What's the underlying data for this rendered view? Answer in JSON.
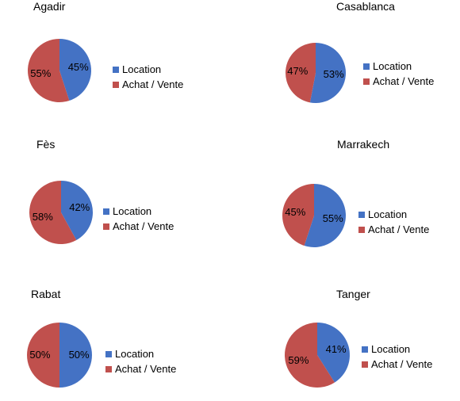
{
  "colors": {
    "Location": "#4472C4",
    "Achat / Vente": "#C0504D"
  },
  "chart_data": [
    {
      "type": "pie",
      "title": "Agadir",
      "slices": [
        {
          "label": "Location",
          "value": 45,
          "text": "45%"
        },
        {
          "label": "Achat / Vente",
          "value": 55,
          "text": "55%"
        }
      ],
      "legend": [
        "Location",
        "Achat / Vente"
      ]
    },
    {
      "type": "pie",
      "title": "Casablanca",
      "slices": [
        {
          "label": "Location",
          "value": 53,
          "text": "53%"
        },
        {
          "label": "Achat / Vente",
          "value": 47,
          "text": "47%"
        }
      ],
      "legend": [
        "Location",
        "Achat / Vente"
      ]
    },
    {
      "type": "pie",
      "title": "Fès",
      "slices": [
        {
          "label": "Location",
          "value": 42,
          "text": "42%"
        },
        {
          "label": "Achat / Vente",
          "value": 58,
          "text": "58%"
        }
      ],
      "legend": [
        "Location",
        "Achat / Vente"
      ]
    },
    {
      "type": "pie",
      "title": "Marrakech",
      "slices": [
        {
          "label": "Location",
          "value": 55,
          "text": "55%"
        },
        {
          "label": "Achat / Vente",
          "value": 45,
          "text": "45%"
        }
      ],
      "legend": [
        "Location",
        "Achat / Vente"
      ]
    },
    {
      "type": "pie",
      "title": "Rabat",
      "slices": [
        {
          "label": "Location",
          "value": 50,
          "text": "50%"
        },
        {
          "label": "Achat / Vente",
          "value": 50,
          "text": "50%"
        }
      ],
      "legend": [
        "Location",
        "Achat / Vente"
      ]
    },
    {
      "type": "pie",
      "title": "Tanger",
      "slices": [
        {
          "label": "Location",
          "value": 41,
          "text": "41%"
        },
        {
          "label": "Achat / Vente",
          "value": 59,
          "text": "59%"
        }
      ],
      "legend": [
        "Location",
        "Achat / Vente"
      ]
    }
  ]
}
